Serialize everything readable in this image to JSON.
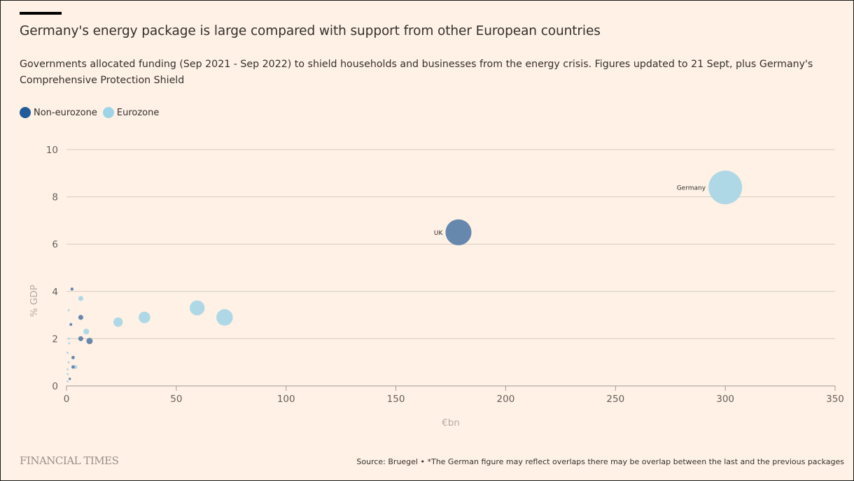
{
  "header": {
    "title": "Germany's energy package is large compared with support from other European countries",
    "subtitle": "Governments allocated funding (Sep 2021 - Sep 2022) to shield households and businesses from the energy crisis. Figures updated to 21 Sept, plus Germany's Comprehensive Protection Shield"
  },
  "legend": [
    {
      "label": "Non-eurozone",
      "color": "#1f5c99"
    },
    {
      "label": "Eurozone",
      "color": "#9fd4e8"
    }
  ],
  "footer": {
    "brand": "FINANCIAL TIMES",
    "source": "Source: Bruegel • *The German figure may reflect overlaps there may be overlap between the last and the previous packages"
  },
  "chart_data": {
    "type": "scatter",
    "title": "Germany's energy package is large compared with support from other European countries",
    "xlabel": "€bn",
    "ylabel": "% GDP",
    "xlim": [
      0,
      350
    ],
    "ylim": [
      0,
      10
    ],
    "xticks": [
      0,
      50,
      100,
      150,
      200,
      250,
      300,
      350
    ],
    "yticks": [
      0,
      2,
      4,
      6,
      8,
      10
    ],
    "grid": "horizontal",
    "legend_position": "top-left",
    "size_encodes": "€bn",
    "series": [
      {
        "name": "Non-eurozone",
        "color": "#5a7fa8",
        "points": [
          {
            "label": "UK",
            "x": 178.5,
            "y": 6.5
          },
          {
            "label": "",
            "x": 10.5,
            "y": 1.9
          },
          {
            "label": "",
            "x": 6.5,
            "y": 2.9
          },
          {
            "label": "",
            "x": 6.5,
            "y": 2.0
          },
          {
            "label": "",
            "x": 2.5,
            "y": 4.1
          },
          {
            "label": "",
            "x": 2.0,
            "y": 2.6
          },
          {
            "label": "",
            "x": 3.0,
            "y": 1.2
          },
          {
            "label": "",
            "x": 3.0,
            "y": 0.8
          },
          {
            "label": "",
            "x": 1.5,
            "y": 0.3
          }
        ]
      },
      {
        "name": "Eurozone",
        "color": "#a8d6e6",
        "points": [
          {
            "label": "Germany",
            "x": 300,
            "y": 8.4
          },
          {
            "label": "",
            "x": 72,
            "y": 2.9
          },
          {
            "label": "",
            "x": 59.5,
            "y": 3.3
          },
          {
            "label": "",
            "x": 35.5,
            "y": 2.9
          },
          {
            "label": "",
            "x": 23.5,
            "y": 2.7
          },
          {
            "label": "",
            "x": 6.5,
            "y": 3.7
          },
          {
            "label": "",
            "x": 9.0,
            "y": 2.3
          },
          {
            "label": "",
            "x": 4.0,
            "y": 0.8
          },
          {
            "label": "",
            "x": 1.0,
            "y": 3.2
          },
          {
            "label": "",
            "x": 1.0,
            "y": 2.0
          },
          {
            "label": "",
            "x": 1.2,
            "y": 1.8
          },
          {
            "label": "",
            "x": 0.5,
            "y": 1.4
          },
          {
            "label": "",
            "x": 1.0,
            "y": 1.0
          },
          {
            "label": "",
            "x": 0.5,
            "y": 0.7
          },
          {
            "label": "",
            "x": 0.5,
            "y": 0.5
          },
          {
            "label": "",
            "x": 0.5,
            "y": 0.2
          }
        ]
      }
    ]
  }
}
